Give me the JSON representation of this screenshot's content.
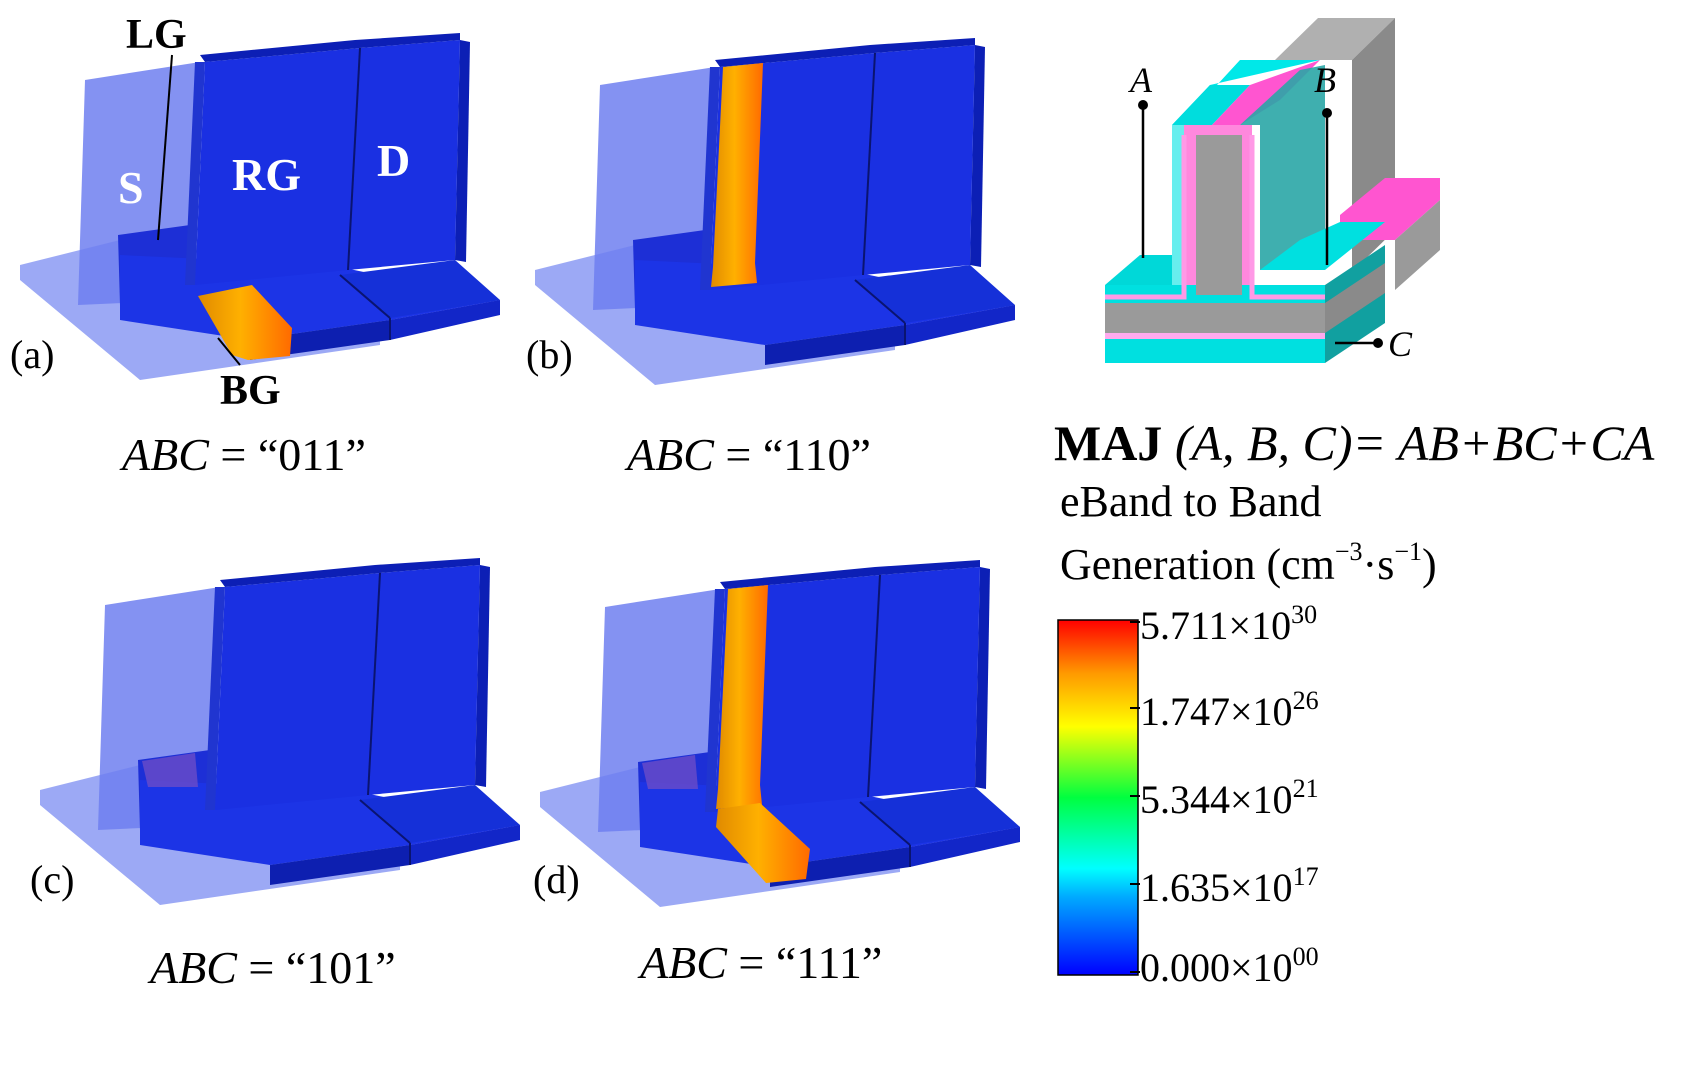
{
  "panels": [
    {
      "tag": "(a)",
      "caption_var": "ABC",
      "caption_eq": " = “011”"
    },
    {
      "tag": "(b)",
      "caption_var": "ABC",
      "caption_eq": " = “110”"
    },
    {
      "tag": "(c)",
      "caption_var": "ABC",
      "caption_eq": " = “101”"
    },
    {
      "tag": "(d)",
      "caption_var": "ABC",
      "caption_eq": " = “111”"
    }
  ],
  "device_labels": {
    "lg": "LG",
    "bg": "BG",
    "s": "S",
    "rg": "RG",
    "d": "D"
  },
  "schematic": {
    "input_a": "A",
    "input_b": "B",
    "input_c": "C",
    "equation_bold": "MAJ",
    "equation_args": " (A, B, C)= AB+BC+CA"
  },
  "colorbar": {
    "title_line1": "eBand to Band",
    "title_line2_base": "Generation (cm",
    "title_line2_exp1": "−3",
    "title_line2_mid": "·s",
    "title_line2_exp2": "−1",
    "title_line2_end": ")",
    "ticks": [
      {
        "mantissa": "5.711×10",
        "exp": "30"
      },
      {
        "mantissa": "1.747×10",
        "exp": "26"
      },
      {
        "mantissa": "5.344×10",
        "exp": "21"
      },
      {
        "mantissa": "1.635×10",
        "exp": "17"
      },
      {
        "mantissa": "0.000×10",
        "exp": "00"
      }
    ]
  },
  "colors": {
    "device_blue": "#1a2fe0",
    "device_dark": "#0f22b8",
    "translucent": "#6f7ff0",
    "hot": "#f5a000",
    "cyan": "#00e0e0",
    "magenta": "#ff55d0",
    "gray": "#9a9a9a"
  }
}
